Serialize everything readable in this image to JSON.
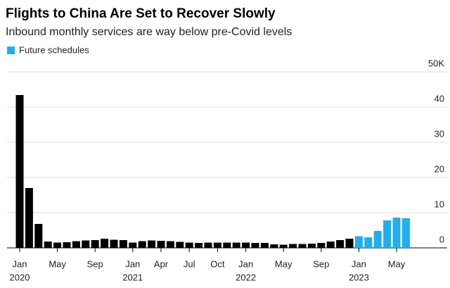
{
  "chart_data": {
    "type": "bar",
    "title": "Flights to China Are Set to Recover Slowly",
    "subtitle": "Inbound monthly services are way below pre-Covid levels",
    "legend": {
      "label": "Future schedules",
      "color": "#1eb0ec"
    },
    "categories": [
      "Jan",
      null,
      null,
      null,
      "May",
      null,
      null,
      null,
      "Sep",
      null,
      null,
      null,
      "Jan",
      null,
      null,
      "Apr",
      null,
      null,
      "Jul",
      null,
      null,
      "Oct",
      null,
      null,
      "Jan",
      null,
      null,
      null,
      "May",
      null,
      null,
      null,
      "Sep",
      null,
      null,
      null,
      "Jan",
      null,
      null,
      null,
      "May",
      null
    ],
    "years": [
      "2020",
      null,
      null,
      null,
      null,
      null,
      null,
      null,
      null,
      null,
      null,
      null,
      "2021",
      null,
      null,
      null,
      null,
      null,
      null,
      null,
      null,
      null,
      null,
      null,
      "2022",
      null,
      null,
      null,
      null,
      null,
      null,
      null,
      null,
      null,
      null,
      null,
      "2023",
      null,
      null,
      null,
      null,
      null
    ],
    "values": [
      43.4,
      17,
      6.8,
      1.8,
      1.5,
      1.6,
      1.9,
      2.1,
      2.2,
      2.6,
      2.3,
      2.2,
      1.5,
      1.9,
      2.1,
      2.0,
      1.9,
      1.7,
      1.5,
      1.4,
      1.5,
      1.5,
      1.5,
      1.5,
      1.5,
      1.4,
      1.4,
      1.0,
      0.9,
      1.1,
      1.1,
      1.2,
      1.4,
      1.8,
      2.2,
      2.6,
      3.3,
      3.0,
      4.8,
      7.8,
      8.6,
      8.4
    ],
    "colors": [
      "#000000",
      "#000000",
      "#000000",
      "#000000",
      "#000000",
      "#000000",
      "#000000",
      "#000000",
      "#000000",
      "#000000",
      "#000000",
      "#000000",
      "#000000",
      "#000000",
      "#000000",
      "#000000",
      "#000000",
      "#000000",
      "#000000",
      "#000000",
      "#000000",
      "#000000",
      "#000000",
      "#000000",
      "#000000",
      "#000000",
      "#000000",
      "#000000",
      "#000000",
      "#000000",
      "#000000",
      "#000000",
      "#000000",
      "#000000",
      "#000000",
      "#000000",
      "#1eb0ec",
      "#1eb0ec",
      "#1eb0ec",
      "#1eb0ec",
      "#1eb0ec",
      "#1eb0ec"
    ],
    "ylim": [
      0,
      50
    ],
    "yticks": [
      0,
      10,
      20,
      30,
      40,
      {
        "value": 50,
        "label": "50K"
      }
    ],
    "grid": true
  }
}
